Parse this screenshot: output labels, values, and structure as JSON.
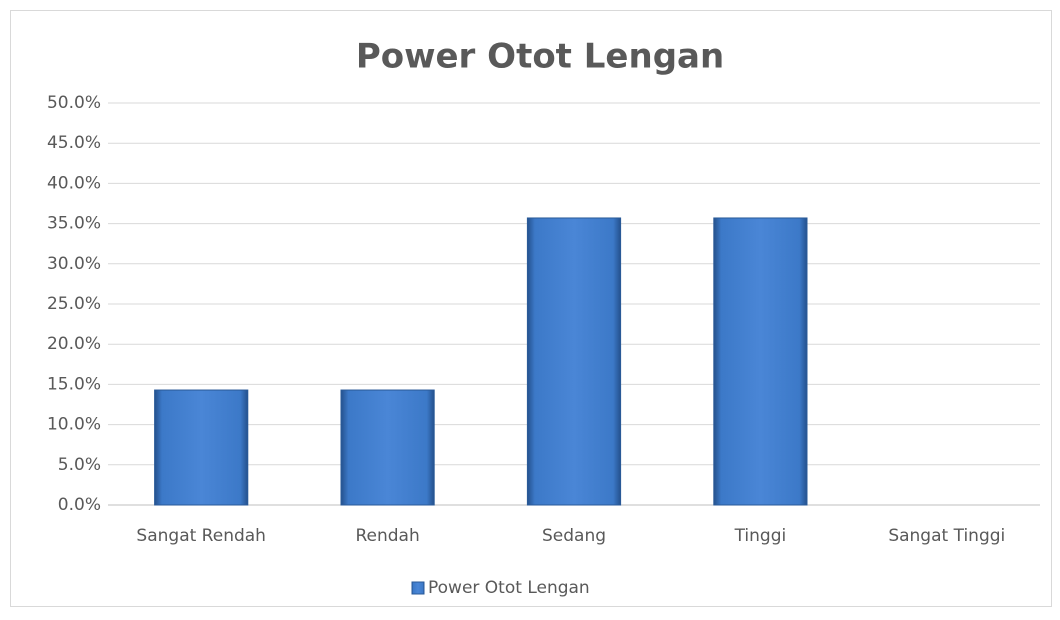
{
  "chart_data": {
    "type": "bar",
    "title": "Power Otot Lengan",
    "categories": [
      "Sangat Rendah",
      "Rendah",
      "Sedang",
      "Tinggi",
      "Sangat Tinggi"
    ],
    "series": [
      {
        "name": "Power Otot Lengan",
        "color": "#3a73c2",
        "values": [
          14.3,
          14.3,
          35.7,
          35.7,
          0
        ]
      }
    ],
    "ylim": [
      0,
      50
    ],
    "yticks": [
      {
        "value": 0,
        "label": "0.0%"
      },
      {
        "value": 5,
        "label": "5.0%"
      },
      {
        "value": 10,
        "label": "10.0%"
      },
      {
        "value": 15,
        "label": "15.0%"
      },
      {
        "value": 20,
        "label": "20.0%"
      },
      {
        "value": 25,
        "label": "25.0%"
      },
      {
        "value": 30,
        "label": "30.0%"
      },
      {
        "value": 35,
        "label": "35.0%"
      },
      {
        "value": 40,
        "label": "40.0%"
      },
      {
        "value": 45,
        "label": "45.0%"
      },
      {
        "value": 50,
        "label": "50.0%"
      }
    ],
    "grid": true,
    "legend": "bottom"
  }
}
